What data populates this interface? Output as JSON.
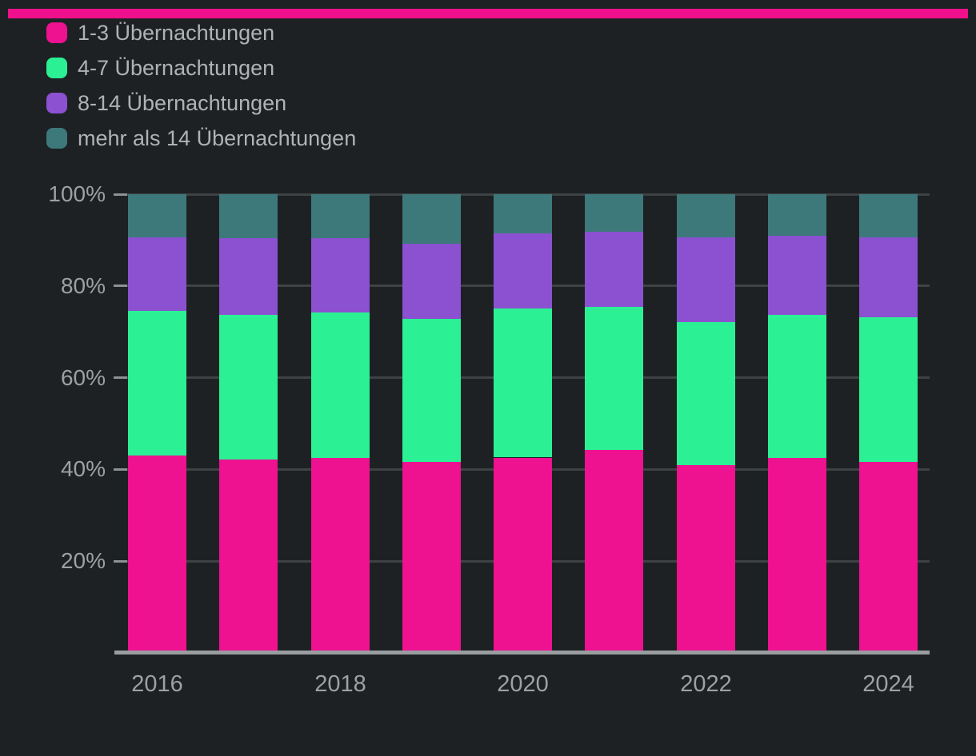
{
  "page": {
    "background": "#1E2124",
    "banner_color": "#F0108E"
  },
  "colors": {
    "series_1_3": "#EE1190",
    "series_4_7": "#2BF094",
    "series_8_14": "#8B51D1",
    "series_14plus": "#3D797B",
    "gridline": "#3F4245",
    "tick": "#8E9193",
    "axis_line": "#9A9DA0",
    "axis_label_text": "#9EA0A3",
    "legend_text": "#B0B2B5"
  },
  "chart_data": {
    "type": "bar",
    "stacked": true,
    "unit": "percent",
    "title": "",
    "xlabel": "",
    "ylabel": "",
    "ylim": [
      0,
      100
    ],
    "grid": true,
    "legend_position": "top-left",
    "categories": [
      "2016",
      "2017",
      "2018",
      "2019",
      "2020",
      "2021",
      "2022",
      "2023",
      "2024"
    ],
    "series": [
      {
        "name": "1-3 Übernachtungen",
        "color": "#EE1190",
        "values": [
          43.0,
          42.2,
          42.5,
          41.6,
          42.6,
          44.3,
          40.9,
          42.6,
          41.6
        ]
      },
      {
        "name": "4-7 Übernachtungen",
        "color": "#2BF094",
        "values": [
          31.5,
          31.5,
          31.8,
          31.2,
          32.5,
          31.1,
          31.3,
          31.1,
          31.6
        ]
      },
      {
        "name": "8-14 Übernachtungen",
        "color": "#8B51D1",
        "values": [
          16.1,
          16.8,
          16.2,
          16.4,
          16.4,
          16.4,
          18.4,
          17.2,
          17.4
        ]
      },
      {
        "name": "mehr als 14 Übernachtungen",
        "color": "#3D797B",
        "values": [
          9.4,
          9.5,
          9.5,
          10.8,
          8.5,
          8.2,
          9.4,
          9.1,
          9.4
        ]
      }
    ],
    "y_ticks": [
      {
        "label": "100%",
        "value": 100
      },
      {
        "label": "80%",
        "value": 80
      },
      {
        "label": "60%",
        "value": 60
      },
      {
        "label": "40%",
        "value": 40
      },
      {
        "label": "20%",
        "value": 20
      }
    ],
    "x_tick_labels": [
      "2016",
      "2018",
      "2020",
      "2022",
      "2024"
    ],
    "x_tick_category_indexes": [
      0,
      2,
      4,
      6,
      8
    ]
  }
}
